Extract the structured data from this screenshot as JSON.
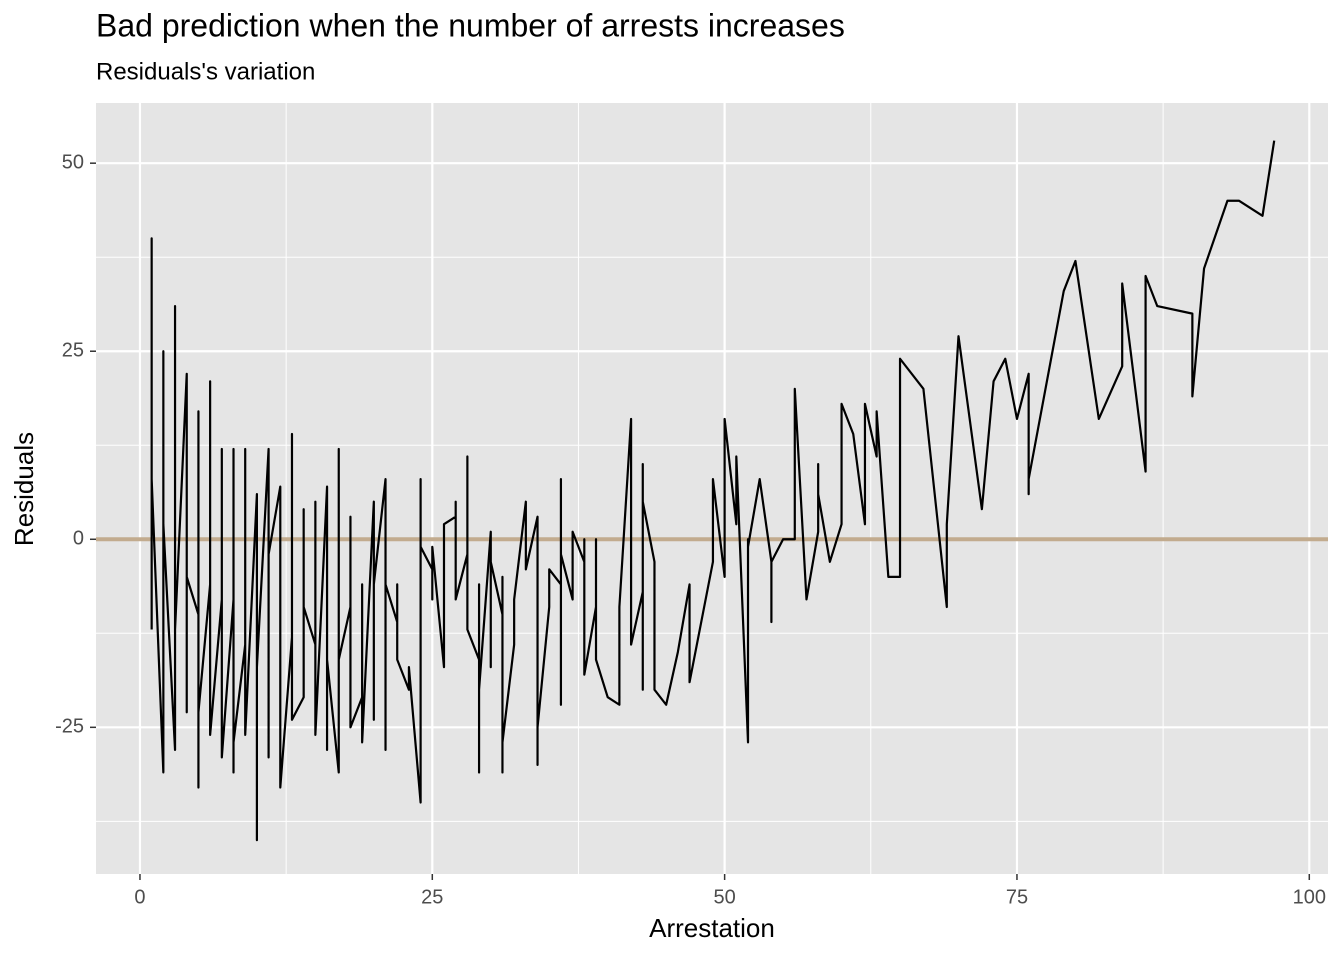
{
  "chart_data": {
    "type": "line",
    "title": "Bad prediction when the number of arrests increases",
    "subtitle": "Residuals's variation",
    "x_label": "Arrestation",
    "y_label": "Residuals",
    "xlim": [
      -3.76,
      101.6
    ],
    "ylim": [
      -44.5,
      58.0
    ],
    "xticks": [
      0,
      25,
      50,
      75,
      100
    ],
    "yticks": [
      -25,
      0,
      25,
      50
    ],
    "grid": true,
    "minor_grid": true,
    "hline": 0,
    "hline_color": "#c2ab8e",
    "series": [
      {
        "color": "#000000",
        "x": [
          1,
          1,
          1,
          2,
          2,
          2,
          3,
          3,
          3,
          4,
          4,
          4,
          5,
          5,
          5,
          5,
          6,
          6,
          6,
          7,
          7,
          7,
          8,
          8,
          8,
          8,
          9,
          9,
          9,
          10,
          10,
          10,
          11,
          11,
          11,
          12,
          12,
          13,
          13,
          13,
          14,
          14,
          14,
          15,
          15,
          15,
          16,
          16,
          16,
          17,
          17,
          17,
          18,
          18,
          18,
          19,
          19,
          19,
          20,
          20,
          20,
          21,
          21,
          21,
          22,
          22,
          22,
          23,
          23,
          24,
          24,
          24,
          25,
          25,
          25,
          26,
          26,
          27,
          27,
          27,
          28,
          28,
          28,
          29,
          29,
          29,
          29,
          30,
          30,
          30,
          31,
          31,
          31,
          31,
          32,
          32,
          33,
          33,
          34,
          34,
          34,
          35,
          35,
          36,
          36,
          36,
          36,
          37,
          37,
          38,
          38,
          38,
          39,
          39,
          39,
          40,
          41,
          41,
          42,
          42,
          43,
          43,
          43,
          43,
          44,
          44,
          45,
          46,
          47,
          47,
          49,
          49,
          50,
          50,
          51,
          51,
          52,
          52,
          52,
          53,
          54,
          54,
          54,
          55,
          56,
          56,
          57,
          58,
          58,
          58,
          59,
          60,
          60,
          61,
          62,
          62,
          63,
          63,
          64,
          65,
          65,
          67,
          69,
          69,
          70,
          72,
          73,
          74,
          75,
          76,
          76,
          76,
          79,
          80,
          82,
          84,
          84,
          86,
          86,
          87,
          90,
          90,
          91,
          93,
          94,
          96,
          97
        ],
        "values": [
          -12,
          40,
          8,
          -31,
          25,
          2,
          -28,
          31,
          -12,
          22,
          -23,
          -5,
          -10,
          17,
          -33,
          -23,
          -6,
          21,
          -26,
          -8,
          12,
          -29,
          -8,
          12,
          -31,
          -27,
          -14,
          12,
          -26,
          6,
          -40,
          -17,
          12,
          -29,
          -2,
          7,
          -33,
          -13,
          14,
          -24,
          -21,
          4,
          -9,
          -14,
          5,
          -26,
          7,
          -28,
          -16,
          -31,
          12,
          -16,
          -9,
          3,
          -25,
          -21,
          -6,
          -27,
          5,
          -24,
          -6,
          8,
          -28,
          -6,
          -11,
          -6,
          -16,
          -20,
          -17,
          -35,
          8,
          -1,
          -4,
          -8,
          -1,
          -17,
          2,
          3,
          5,
          -8,
          -2,
          11,
          -12,
          -16,
          -6,
          -31,
          -20,
          1,
          -17,
          -3,
          -10,
          -5,
          -31,
          -27,
          -14,
          -8,
          5,
          -4,
          3,
          -30,
          -25,
          -9,
          -4,
          -6,
          8,
          -22,
          -2,
          -8,
          1,
          -3,
          0,
          -18,
          -9,
          0,
          -16,
          -21,
          -22,
          -9,
          16,
          -14,
          -7,
          10,
          -20,
          5,
          -3,
          -20,
          -22,
          -15,
          -6,
          -19,
          -3,
          8,
          -5,
          16,
          2,
          11,
          -27,
          0,
          -1,
          8,
          -3,
          -11,
          -3,
          0,
          0,
          20,
          -8,
          1,
          10,
          6,
          -3,
          2,
          18,
          14,
          2,
          18,
          11,
          17,
          -5,
          -5,
          24,
          20,
          -9,
          2,
          27,
          4,
          21,
          24,
          16,
          22,
          6,
          8,
          33,
          37,
          16,
          23,
          34,
          9,
          35,
          31,
          30,
          19,
          36,
          45,
          45,
          43,
          53
        ]
      }
    ]
  }
}
